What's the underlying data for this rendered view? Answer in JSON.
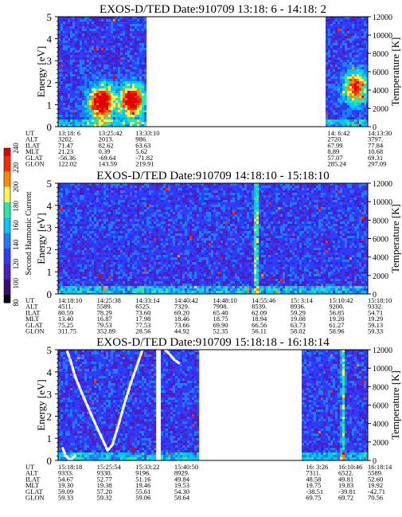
{
  "chart_data": [
    {
      "type": "heatmap",
      "title": "EXOS-D/TED   Date:910709  13:18: 6 - 14:18: 2",
      "ylabel": "Energy [eV]",
      "y2label": "Temperature [K]",
      "ylim": [
        0,
        5
      ],
      "yticks": [
        "0",
        "1",
        "2",
        "3",
        "4",
        "5"
      ],
      "y2lim": [
        0,
        12000
      ],
      "y2ticks": [
        "0",
        "2000",
        "4000",
        "6000",
        "8000",
        "10000",
        "12000"
      ],
      "data_segments": [
        [
          0.0,
          0.28
        ],
        [
          0.87,
          1.0
        ]
      ],
      "hotspots": [
        {
          "x": 0.14,
          "y": 1.1,
          "level": 0.95
        },
        {
          "x": 0.24,
          "y": 1.2,
          "level": 0.85
        },
        {
          "x": 0.96,
          "y": 1.8,
          "level": 0.7
        }
      ],
      "spikes": [],
      "orbit": {
        "labels": [
          "UT",
          "ALT",
          "ILAT",
          "MLT",
          "GLAT",
          "GLON"
        ],
        "columns": [
          {
            "pos": 0.0,
            "values": [
              "13:18: 6",
              "3202.",
              "71.47",
              "21.23",
              "-56.36",
              "122.02"
            ]
          },
          {
            "pos": 0.13,
            "values": [
              "13:25:42",
              "2013.",
              "82.62",
              "0.39",
              "-69.64",
              "143.59"
            ]
          },
          {
            "pos": 0.25,
            "values": [
              "13:33:10",
              "986.",
              "63.63",
              "5.62",
              "-71.82",
              "219.91"
            ]
          },
          {
            "pos": 0.87,
            "values": [
              "14: 6:42",
              "2720.",
              "67.99",
              "8.89",
              "57.07",
              "285.24"
            ]
          },
          {
            "pos": 1.0,
            "values": [
              "14:13:30",
              "3797.",
              "77.84",
              "10.68",
              "69.31",
              "297.09"
            ]
          }
        ]
      }
    },
    {
      "type": "heatmap",
      "title": "EXOS-D/TED   Date:910709  14:18:10 - 15:18:10",
      "ylabel": "Energy [eV]",
      "y2label": "Temperature [K]",
      "ylim": [
        0,
        5
      ],
      "yticks": [
        "0",
        "1",
        "2",
        "3",
        "4",
        "5"
      ],
      "y2lim": [
        0,
        12000
      ],
      "y2ticks": [
        "0",
        "2000",
        "4000",
        "6000",
        "8000",
        "10000",
        "12000"
      ],
      "data_segments": [
        [
          0.0,
          1.0
        ]
      ],
      "hotspots": [],
      "spikes": [
        {
          "x": 0.64,
          "level": 0.55
        }
      ],
      "orbit": {
        "labels": [
          "UT",
          "ALT",
          "ILAT",
          "MLT",
          "GLAT",
          "GLON"
        ],
        "columns": [
          {
            "pos": 0.0,
            "values": [
              "14:18:10",
              "4511.",
              "80.59",
              "13.40",
              "75.25",
              "311.75"
            ]
          },
          {
            "pos": 0.125,
            "values": [
              "14:25:38",
              "5589.",
              "78.29",
              "16.87",
              "79.53",
              "352.89"
            ]
          },
          {
            "pos": 0.25,
            "values": [
              "14:33:14",
              "6525.",
              "73.60",
              "17.98",
              "77.53",
              "28.56"
            ]
          },
          {
            "pos": 0.375,
            "values": [
              "14:40:42",
              "7329.",
              "69.20",
              "18.46",
              "73.66",
              "44.92"
            ]
          },
          {
            "pos": 0.5,
            "values": [
              "14:48:10",
              "7998.",
              "65.40",
              "18.75",
              "69.90",
              "52.35"
            ]
          },
          {
            "pos": 0.625,
            "values": [
              "14:55:46",
              "8539.",
              "62.09",
              "18.94",
              "66.56",
              "56.11"
            ]
          },
          {
            "pos": 0.75,
            "values": [
              "15: 3:14",
              "8936.",
              "59.29",
              "19.08",
              "63.73",
              "58.02"
            ]
          },
          {
            "pos": 0.875,
            "values": [
              "15:10:42",
              "9200.",
              "56.85",
              "19.20",
              "61.27",
              "58.96"
            ]
          },
          {
            "pos": 1.0,
            "values": [
              "15:18:10",
              "9332.",
              "54.71",
              "19.29",
              "59.13",
              "59.33"
            ]
          }
        ]
      }
    },
    {
      "type": "heatmap",
      "title": "EXOS-D/TED   Date:910709  15:18:18 - 16:18:14",
      "ylabel": "Energy [eV]",
      "y2label": "Temperature [K]",
      "ylim": [
        0,
        5
      ],
      "yticks": [
        "0",
        "1",
        "2",
        "3",
        "4",
        "5"
      ],
      "y2lim": [
        0,
        12000
      ],
      "y2ticks": [
        "0",
        "2000",
        "4000",
        "6000",
        "8000",
        "10000",
        "12000"
      ],
      "data_segments": [
        [
          0.0,
          0.315
        ],
        [
          0.335,
          0.455
        ],
        [
          0.79,
          1.0
        ]
      ],
      "hotspots": [],
      "spikes": [
        {
          "x": 0.92,
          "level": 0.45
        }
      ],
      "white_traces": [
        [
          [
            0.03,
            4.9
          ],
          [
            0.04,
            4.5
          ],
          [
            0.055,
            3.8
          ],
          [
            0.075,
            3.1
          ],
          [
            0.1,
            2.3
          ],
          [
            0.125,
            1.5
          ],
          [
            0.145,
            0.9
          ],
          [
            0.16,
            0.45
          ],
          [
            0.175,
            0.7
          ],
          [
            0.195,
            1.6
          ],
          [
            0.215,
            2.6
          ],
          [
            0.235,
            3.5
          ],
          [
            0.255,
            4.3
          ],
          [
            0.27,
            4.9
          ]
        ],
        [
          [
            0.015,
            0.55
          ],
          [
            0.025,
            0.2
          ],
          [
            0.04,
            0.0
          ],
          [
            0.06,
            0.3
          ]
        ],
        [
          [
            0.345,
            5.0
          ],
          [
            0.36,
            4.8
          ],
          [
            0.375,
            4.55
          ],
          [
            0.39,
            4.4
          ]
        ]
      ],
      "orbit": {
        "labels": [
          "UT",
          "ALT",
          "ILAT",
          "MLT",
          "GLAT",
          "GLON"
        ],
        "columns": [
          {
            "pos": 0.0,
            "values": [
              "15:18:18",
              "9333.",
              "54.67",
              "19.30",
              "59.09",
              "59.33"
            ]
          },
          {
            "pos": 0.125,
            "values": [
              "15:25:54",
              "9330.",
              "52.77",
              "19.38",
              "57.20",
              "59.32"
            ]
          },
          {
            "pos": 0.25,
            "values": [
              "15:33:22",
              "9196.",
              "51.16",
              "19.46",
              "55.61",
              "59.06"
            ]
          },
          {
            "pos": 0.375,
            "values": [
              "15:40:50",
              "8929.",
              "49.84",
              "19.53",
              "54.30",
              "58.64"
            ]
          },
          {
            "pos": 0.8,
            "values": [
              "16: 3:26",
              "7311.",
              "48.58",
              "19.75",
              "-38.51",
              "69.75"
            ]
          },
          {
            "pos": 0.905,
            "values": [
              "16:10:46",
              "6522.",
              "49.81",
              "19.83",
              "-39.81",
              "69.72"
            ]
          },
          {
            "pos": 1.0,
            "values": [
              "16:18:14",
              "5589.",
              "52.60",
              "19.92",
              "-42.71",
              "70.56"
            ]
          }
        ]
      }
    }
  ],
  "colorbar": {
    "label": "Second Harmonic Current",
    "ticks": [
      "80",
      "100",
      "120",
      "140",
      "160",
      "180",
      "200",
      "220",
      "240"
    ],
    "colors": [
      "#000000",
      "#3a0a78",
      "#4b1fc4",
      "#2f3bff",
      "#1f7bff",
      "#00c8ff",
      "#2ee6a8",
      "#fff25a",
      "#ff8a00",
      "#ff2a00",
      "#e00000"
    ]
  }
}
